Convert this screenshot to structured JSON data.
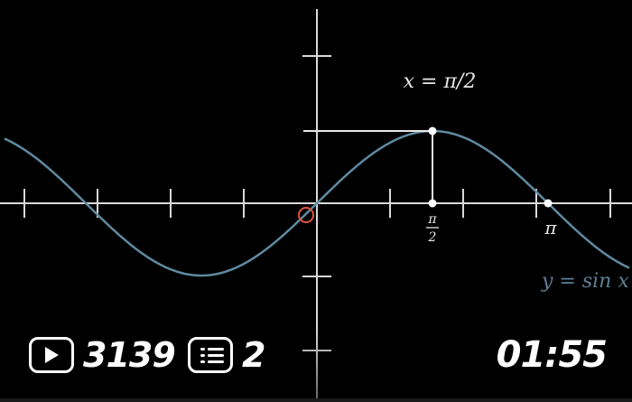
{
  "scene": {
    "curve_label": "y = sin x",
    "point_label": "x = π/2",
    "tick_half_pi_num": "π",
    "tick_half_pi_den": "2",
    "tick_pi": "π",
    "colors": {
      "curve": "#5f8aa0",
      "axes": "#d9d9d9",
      "origin_marker": "#e0533a"
    }
  },
  "stats": {
    "views_icon": "play-icon",
    "views": "3139",
    "list_icon": "list-icon",
    "lists": "2"
  },
  "video": {
    "duration": "01:55"
  }
}
